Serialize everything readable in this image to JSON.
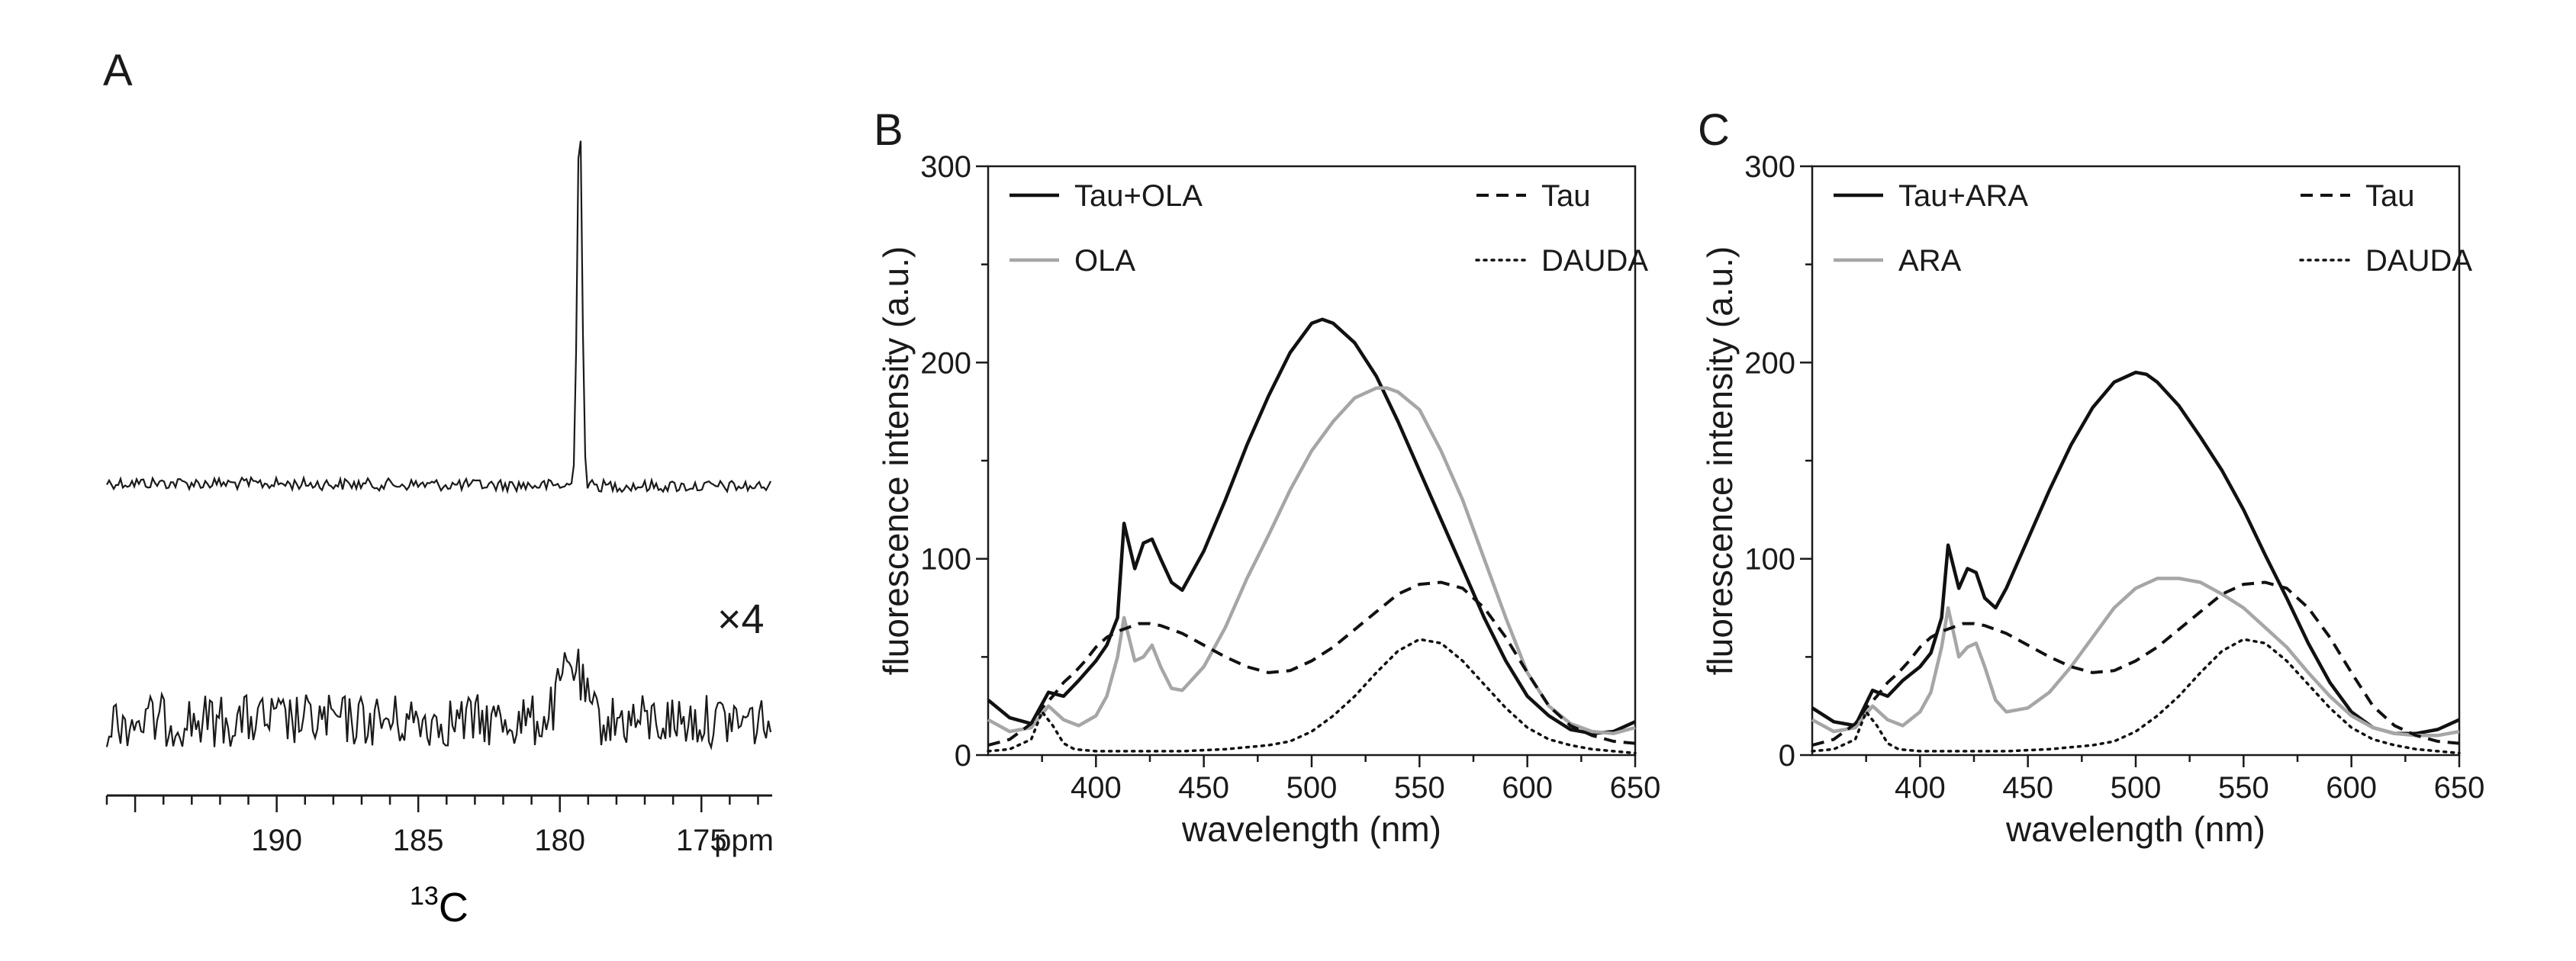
{
  "panel_a": {
    "letter": "A",
    "scale_factor_label": "×4",
    "nucleus_superscript": "13",
    "nucleus_symbol": "C",
    "unit_label": "ppm"
  },
  "chart_data": [
    {
      "panel": "A",
      "type": "line",
      "title": "",
      "xlabel": "13C",
      "ylabel": "",
      "xlim": [
        196,
        172.5
      ],
      "x_ticks": [
        190,
        185,
        180,
        175
      ],
      "x_unit": "ppm",
      "series": [
        {
          "name": "upper spectrum",
          "peak_ppm": 179.3,
          "note": "sharp single resonance"
        },
        {
          "name": "lower spectrum (x4)",
          "peak_ppm": 179.6,
          "note": "broad resonance, noisy baseline"
        }
      ]
    },
    {
      "panel": "B",
      "type": "line",
      "title": "",
      "xlabel": "wavelength (nm)",
      "ylabel": "fluorescence intensity (a.u.)",
      "xlim": [
        350,
        650
      ],
      "ylim": [
        0,
        300
      ],
      "x_ticks": [
        400,
        450,
        500,
        550,
        600,
        650
      ],
      "y_ticks": [
        0,
        100,
        200,
        300
      ],
      "legend": [
        "Tau+OLA",
        "OLA",
        "Tau",
        "DAUDA"
      ],
      "series": [
        {
          "name": "Tau+OLA",
          "style": "solid",
          "color": "#111111",
          "x": [
            350,
            360,
            370,
            378,
            385,
            392,
            400,
            405,
            410,
            413,
            418,
            422,
            426,
            430,
            435,
            440,
            450,
            460,
            470,
            480,
            490,
            500,
            505,
            510,
            520,
            530,
            540,
            550,
            560,
            570,
            580,
            590,
            600,
            610,
            620,
            630,
            640,
            650
          ],
          "y": [
            28,
            19,
            16,
            32,
            30,
            38,
            48,
            56,
            70,
            118,
            95,
            108,
            110,
            100,
            88,
            84,
            104,
            130,
            158,
            183,
            205,
            220,
            222,
            220,
            210,
            193,
            170,
            145,
            120,
            95,
            70,
            48,
            30,
            20,
            13,
            11,
            12,
            17
          ]
        },
        {
          "name": "OLA",
          "style": "solid",
          "color": "#a6a6a6",
          "x": [
            350,
            360,
            370,
            378,
            385,
            392,
            400,
            405,
            410,
            413,
            418,
            422,
            426,
            430,
            435,
            440,
            450,
            460,
            470,
            480,
            490,
            500,
            510,
            520,
            530,
            535,
            540,
            550,
            560,
            570,
            580,
            590,
            600,
            610,
            620,
            630,
            640,
            650
          ],
          "y": [
            18,
            12,
            14,
            25,
            18,
            15,
            20,
            30,
            50,
            70,
            48,
            50,
            56,
            45,
            34,
            33,
            45,
            65,
            90,
            112,
            135,
            155,
            170,
            182,
            187,
            187,
            185,
            176,
            155,
            130,
            100,
            70,
            42,
            25,
            16,
            12,
            11,
            14
          ]
        },
        {
          "name": "Tau",
          "style": "dashed",
          "color": "#111111",
          "x": [
            350,
            360,
            370,
            375,
            380,
            385,
            390,
            395,
            400,
            405,
            410,
            415,
            420,
            425,
            430,
            440,
            450,
            460,
            470,
            480,
            490,
            500,
            510,
            520,
            530,
            540,
            550,
            560,
            570,
            580,
            590,
            600,
            610,
            620,
            630,
            640,
            650
          ],
          "y": [
            5,
            8,
            16,
            24,
            30,
            37,
            42,
            48,
            55,
            60,
            63,
            65,
            67,
            67,
            66,
            62,
            56,
            50,
            45,
            42,
            43,
            48,
            55,
            64,
            73,
            82,
            87,
            88,
            85,
            75,
            60,
            42,
            25,
            15,
            10,
            7,
            6
          ]
        },
        {
          "name": "DAUDA",
          "style": "dotted",
          "color": "#111111",
          "x": [
            350,
            360,
            370,
            375,
            380,
            385,
            390,
            400,
            420,
            440,
            460,
            480,
            490,
            500,
            510,
            520,
            530,
            540,
            550,
            560,
            570,
            580,
            590,
            600,
            610,
            620,
            630,
            640,
            650
          ],
          "y": [
            2,
            3,
            8,
            22,
            15,
            6,
            3,
            2,
            2,
            2,
            3,
            5,
            7,
            12,
            20,
            30,
            42,
            53,
            59,
            57,
            48,
            36,
            24,
            14,
            8,
            5,
            3,
            2,
            1
          ]
        }
      ]
    },
    {
      "panel": "C",
      "type": "line",
      "title": "",
      "xlabel": "wavelength (nm)",
      "ylabel": "fluorescence intensity (a.u.)",
      "xlim": [
        350,
        650
      ],
      "ylim": [
        0,
        300
      ],
      "x_ticks": [
        400,
        450,
        500,
        550,
        600,
        650
      ],
      "y_ticks": [
        0,
        100,
        200,
        300
      ],
      "legend": [
        "Tau+ARA",
        "ARA",
        "Tau",
        "DAUDA"
      ],
      "series": [
        {
          "name": "Tau+ARA",
          "style": "solid",
          "color": "#111111",
          "x": [
            350,
            360,
            370,
            378,
            385,
            392,
            400,
            405,
            410,
            413,
            418,
            422,
            426,
            430,
            435,
            440,
            450,
            460,
            470,
            480,
            490,
            500,
            505,
            510,
            520,
            530,
            540,
            550,
            560,
            570,
            580,
            590,
            600,
            610,
            620,
            630,
            640,
            650
          ],
          "y": [
            24,
            17,
            15,
            33,
            30,
            38,
            45,
            52,
            70,
            107,
            85,
            95,
            93,
            80,
            75,
            85,
            110,
            135,
            158,
            177,
            190,
            195,
            194,
            190,
            178,
            162,
            145,
            125,
            102,
            80,
            57,
            37,
            22,
            14,
            11,
            11,
            13,
            18
          ]
        },
        {
          "name": "ARA",
          "style": "solid",
          "color": "#a6a6a6",
          "x": [
            350,
            360,
            370,
            378,
            385,
            392,
            400,
            405,
            410,
            413,
            418,
            422,
            426,
            430,
            435,
            440,
            450,
            460,
            470,
            480,
            490,
            500,
            510,
            520,
            530,
            540,
            550,
            560,
            570,
            580,
            590,
            600,
            610,
            620,
            630,
            640,
            650
          ],
          "y": [
            18,
            12,
            14,
            25,
            18,
            15,
            22,
            32,
            55,
            75,
            50,
            55,
            57,
            45,
            28,
            22,
            24,
            32,
            45,
            60,
            75,
            85,
            90,
            90,
            88,
            82,
            75,
            65,
            55,
            42,
            30,
            20,
            14,
            11,
            10,
            10,
            12
          ]
        },
        {
          "name": "Tau",
          "style": "dashed",
          "color": "#111111",
          "x": [
            350,
            360,
            370,
            375,
            380,
            385,
            390,
            395,
            400,
            405,
            410,
            415,
            420,
            425,
            430,
            440,
            450,
            460,
            470,
            480,
            490,
            500,
            510,
            520,
            530,
            540,
            550,
            560,
            570,
            580,
            590,
            600,
            610,
            620,
            630,
            640,
            650
          ],
          "y": [
            5,
            8,
            16,
            24,
            30,
            37,
            42,
            48,
            55,
            60,
            63,
            65,
            67,
            67,
            66,
            62,
            56,
            50,
            45,
            42,
            43,
            48,
            55,
            64,
            73,
            82,
            87,
            88,
            85,
            75,
            60,
            42,
            25,
            15,
            10,
            7,
            6
          ]
        },
        {
          "name": "DAUDA",
          "style": "dotted",
          "color": "#111111",
          "x": [
            350,
            360,
            370,
            375,
            380,
            385,
            390,
            400,
            420,
            440,
            460,
            480,
            490,
            500,
            510,
            520,
            530,
            540,
            550,
            560,
            570,
            580,
            590,
            600,
            610,
            620,
            630,
            640,
            650
          ],
          "y": [
            2,
            3,
            8,
            22,
            15,
            6,
            3,
            2,
            2,
            2,
            3,
            5,
            7,
            12,
            20,
            30,
            42,
            53,
            59,
            57,
            48,
            36,
            24,
            14,
            8,
            5,
            3,
            2,
            1
          ]
        }
      ]
    }
  ]
}
